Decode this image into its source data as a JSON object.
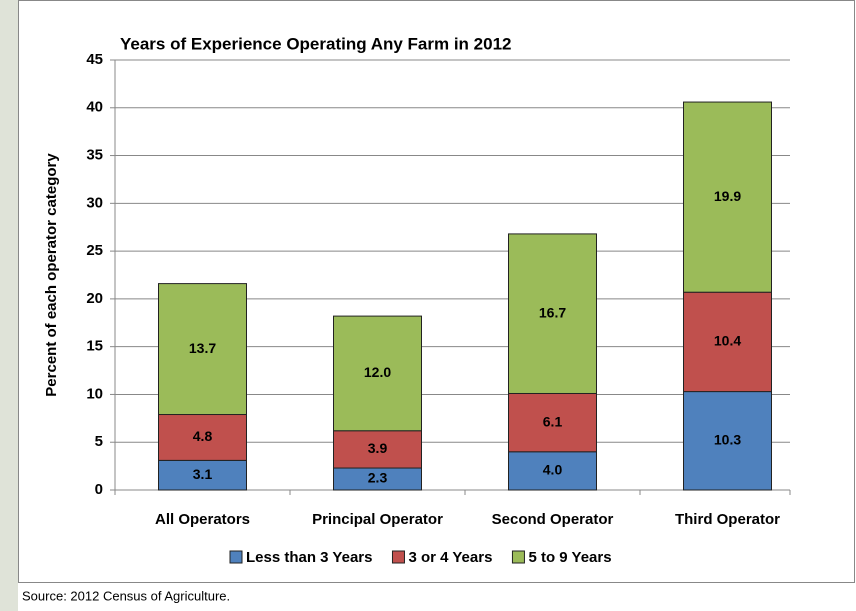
{
  "chart_data": {
    "type": "stacked-bar",
    "title": "Years of Experience Operating Any Farm in 2012",
    "y_label": "Percent of each operator category",
    "categories": [
      "All Operators",
      "Principal Operator",
      "Second Operator",
      "Third Operator"
    ],
    "series": [
      {
        "name": "Less than 3 Years",
        "color": "#4f81bd",
        "values": [
          3.1,
          2.3,
          4,
          10.3
        ],
        "value_labels": [
          "3.1",
          "2.3",
          "4.0",
          "10.3"
        ]
      },
      {
        "name": "3 or 4 Years",
        "color": "#c0504d",
        "values": [
          4.8,
          3.9,
          6.1,
          10.4
        ],
        "value_labels": [
          "4.8",
          "3.9",
          "6.1",
          "10.4"
        ]
      },
      {
        "name": "5 to 9 Years",
        "color": "#9bbb59",
        "values": [
          13.7,
          12,
          16.7,
          19.9
        ],
        "value_labels": [
          "13.7",
          "12.0",
          "16.7",
          "19.9"
        ]
      }
    ],
    "ylim": [
      0,
      45
    ],
    "yticks": [
      0,
      5,
      10,
      15,
      20,
      25,
      30,
      35,
      40,
      45
    ],
    "grid": true,
    "legend": "bottom",
    "source": "Source:  2012 Census of Agriculture."
  }
}
